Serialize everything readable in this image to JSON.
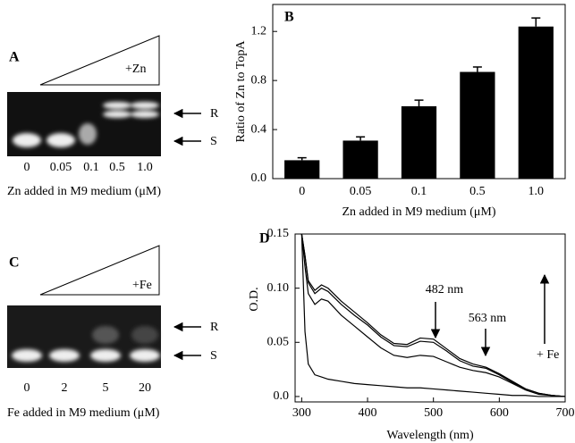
{
  "chart_data": [
    {
      "type": "bar",
      "panel": "B",
      "xlabel": "Zn added in M9 medium (μM)",
      "ylabel": "Ratio of Zn to TopA",
      "categories": [
        "0",
        "0.05",
        "0.1",
        "0.5",
        "1.0"
      ],
      "values": [
        0.15,
        0.31,
        0.59,
        0.87,
        1.24
      ],
      "errors": [
        0.02,
        0.03,
        0.05,
        0.04,
        0.07
      ],
      "color": "#000000",
      "ylim": [
        0,
        1.42
      ],
      "yticks": [
        {
          "value": 0,
          "label": "0.0"
        },
        0.4,
        0.8,
        1.2
      ]
    },
    {
      "type": "line",
      "panel": "D",
      "xlabel": "Wavelength (nm)",
      "ylabel": "O.D.",
      "x": [
        300,
        305,
        310,
        320,
        330,
        340,
        360,
        380,
        400,
        420,
        440,
        460,
        480,
        500,
        520,
        540,
        560,
        580,
        600,
        620,
        640,
        660,
        680,
        700
      ],
      "series": [
        {
          "color": "#000000",
          "values": [
            0.15,
            0.06,
            0.03,
            0.02,
            0.018,
            0.016,
            0.014,
            0.012,
            0.011,
            0.01,
            0.009,
            0.008,
            0.008,
            0.007,
            0.006,
            0.005,
            0.004,
            0.003,
            0.002,
            0.001,
            0.001,
            0,
            0,
            0
          ]
        },
        {
          "color": "#000000",
          "values": [
            0.15,
            0.12,
            0.095,
            0.085,
            0.09,
            0.088,
            0.075,
            0.065,
            0.055,
            0.045,
            0.038,
            0.036,
            0.038,
            0.037,
            0.032,
            0.027,
            0.024,
            0.022,
            0.018,
            0.012,
            0.006,
            0.002,
            0.001,
            0
          ]
        },
        {
          "color": "#000000",
          "values": [
            0.15,
            0.13,
            0.105,
            0.095,
            0.1,
            0.097,
            0.085,
            0.075,
            0.066,
            0.055,
            0.047,
            0.046,
            0.051,
            0.05,
            0.042,
            0.033,
            0.028,
            0.026,
            0.02,
            0.013,
            0.007,
            0.003,
            0.001,
            0
          ]
        },
        {
          "color": "#000000",
          "values": [
            0.15,
            0.13,
            0.107,
            0.098,
            0.103,
            0.1,
            0.088,
            0.078,
            0.068,
            0.057,
            0.049,
            0.048,
            0.054,
            0.053,
            0.044,
            0.035,
            0.03,
            0.027,
            0.021,
            0.014,
            0.007,
            0.003,
            0.001,
            0
          ]
        }
      ],
      "xlim": [
        290,
        700
      ],
      "ylim": [
        -0.005,
        0.15
      ],
      "xticks": [
        300,
        400,
        500,
        600,
        700
      ],
      "yticks": [
        {
          "value": 0,
          "label": "0.0"
        },
        0.05,
        {
          "value": 0.1,
          "label": "0.10"
        },
        0.15
      ],
      "annotations": [
        "482 nm",
        "563 nm",
        "+ Fe"
      ]
    }
  ],
  "gel_a": {
    "panel": "A",
    "treatment": "+Zn",
    "lanes": [
      "0",
      "0.05",
      "0.1",
      "0.5",
      "1.0"
    ],
    "xlabel": "Zn added in M9 medium (μM)",
    "bands": [
      "R",
      "S"
    ]
  },
  "gel_c": {
    "panel": "C",
    "treatment": "+Fe",
    "lanes": [
      "0",
      "2",
      "5",
      "20"
    ],
    "xlabel": "Fe added in M9 medium (μM)",
    "bands": [
      "R",
      "S"
    ]
  }
}
